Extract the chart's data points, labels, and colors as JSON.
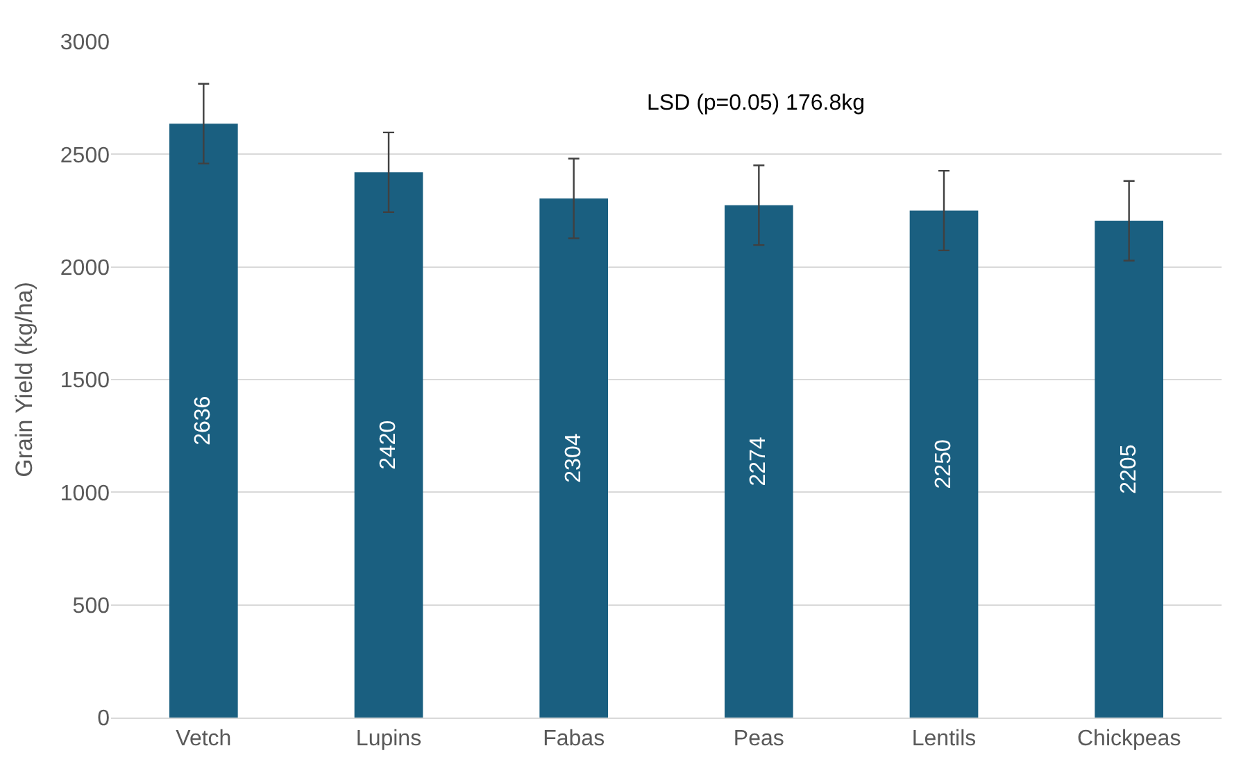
{
  "chart_data": {
    "type": "bar",
    "ylabel": "Grain Yield (kg/ha)",
    "categories": [
      "Vetch",
      "Lupins",
      "Fabas",
      "Peas",
      "Lentils",
      "Chickpeas"
    ],
    "values": [
      2636,
      2420,
      2304,
      2274,
      2250,
      2205
    ],
    "errors": [
      176.8,
      176.8,
      176.8,
      176.8,
      176.8,
      176.8
    ],
    "color": "#1a5f80",
    "ylim": [
      0,
      3000
    ],
    "yticks": [
      0,
      500,
      1000,
      1500,
      2000,
      2500,
      3000
    ],
    "grid": "y",
    "data_labels": true,
    "annotations": [
      "LSD (p=0.05) 176.8kg"
    ]
  }
}
